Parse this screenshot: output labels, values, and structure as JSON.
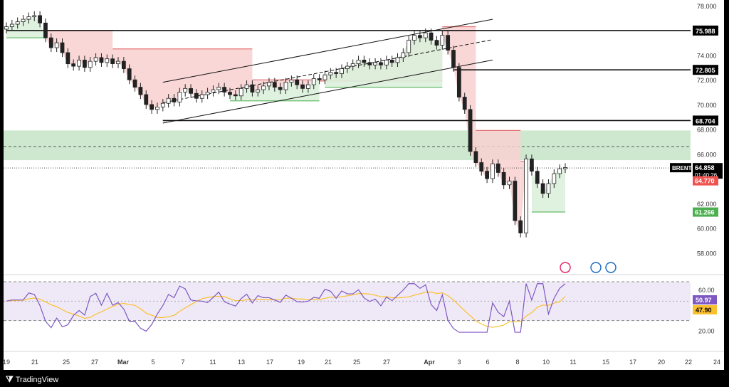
{
  "footer": {
    "brand": "TradingView",
    "logo_icon": "tradingview-logo-icon"
  },
  "chart_data": [
    {
      "type": "candlestick",
      "symbol": "BRENT",
      "last_price": "64.858",
      "countdown": "01:40:26",
      "prev_level": "64.770",
      "stop_level": "61.266",
      "x_ticks": [
        "19",
        "21",
        "25",
        "27",
        "Mar",
        "5",
        "7",
        "11",
        "13",
        "17",
        "19",
        "21",
        "25",
        "27",
        "Apr",
        "3",
        "6",
        "8",
        "10",
        "11",
        "15",
        "17",
        "20",
        "22",
        "24"
      ],
      "y_ticks": [
        "78.000",
        "74.000",
        "72.000",
        "70.000",
        "68.000",
        "66.000",
        "62.000",
        "60.000",
        "58.000"
      ],
      "ylim": [
        57,
        78.5
      ],
      "levels": [
        {
          "label": "75.988",
          "value": 75.988
        },
        {
          "label": "72.805",
          "value": 72.805
        },
        {
          "label": "68.704",
          "value": 68.704
        }
      ],
      "zone": {
        "low": 65.5,
        "high": 67.9,
        "mid": 66.6
      },
      "channel": {
        "start": {
          "x": "Mar 6",
          "lower": 68.5,
          "upper": 71.8
        },
        "end": {
          "x": "Apr 4",
          "lower": 73.5,
          "upper": 76.8
        }
      },
      "closes": [
        76.3,
        76.5,
        76.7,
        76.9,
        77.1,
        77.2,
        76.6,
        75.4,
        74.6,
        75.0,
        74.2,
        73.3,
        73.1,
        73.6,
        73.0,
        73.5,
        73.8,
        73.4,
        73.7,
        73.3,
        73.5,
        72.9,
        72.0,
        71.4,
        70.8,
        70.0,
        69.6,
        69.8,
        70.1,
        70.5,
        70.2,
        71.0,
        71.3,
        70.9,
        70.5,
        70.8,
        71.0,
        71.2,
        71.4,
        71.0,
        70.8,
        70.7,
        71.3,
        71.6,
        71.0,
        71.2,
        71.5,
        71.8,
        71.4,
        71.2,
        71.8,
        72.0,
        71.6,
        71.3,
        71.6,
        72.1,
        72.0,
        72.4,
        72.6,
        72.5,
        72.9,
        73.1,
        73.3,
        73.6,
        73.4,
        73.2,
        73.4,
        73.2,
        73.6,
        73.4,
        73.8,
        74.2,
        75.2,
        75.6,
        75.4,
        75.8,
        75.2,
        74.8,
        75.6,
        74.4,
        73.0,
        70.6,
        69.6,
        66.2,
        65.3,
        64.6,
        64.0,
        65.2,
        64.5,
        63.5,
        63.8,
        60.6,
        59.6,
        65.6,
        64.6,
        63.6,
        62.8,
        63.6,
        64.4,
        64.8,
        64.9
      ],
      "tsl_red_segments": [
        {
          "from": 7,
          "to": 19,
          "value": 76.0
        },
        {
          "from": 19,
          "to": 44,
          "value": 74.5
        },
        {
          "from": 44,
          "to": 56,
          "value": 72.0
        },
        {
          "from": 56,
          "to": 78,
          "value": 71.9
        },
        {
          "from": 78,
          "to": 84,
          "value": 76.3
        },
        {
          "from": 84,
          "to": 92,
          "value": 67.9
        },
        {
          "from": 92,
          "to": 93,
          "value": 65.4
        }
      ],
      "rsi": {
        "y_ticks": [
          "60.00",
          "20.00"
        ],
        "value": "50.97",
        "ma": "47.90",
        "band": [
          30,
          70
        ],
        "mid": 50
      },
      "event_icons": [
        "flash-icon",
        "us-flag-icon",
        "us-flag-icon"
      ]
    }
  ]
}
